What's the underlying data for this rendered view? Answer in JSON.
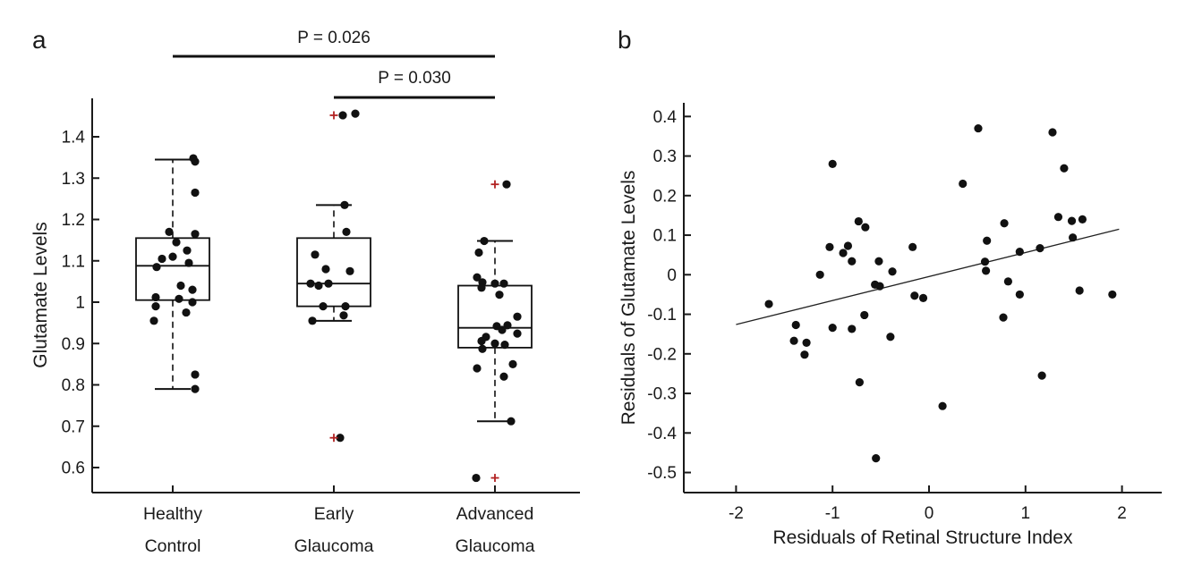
{
  "chart_data": [
    {
      "type": "box",
      "panel_label": "a",
      "ylabel": "Glutamate Levels",
      "ylim": [
        0.54,
        1.49
      ],
      "yticks": [
        1.4,
        1.3,
        1.2,
        1.1,
        1.0,
        0.9,
        0.8,
        0.7,
        0.6
      ],
      "ytick_labels": [
        "1.4",
        "1.3",
        "1.2",
        "1.1",
        "1",
        "0.9",
        "0.8",
        "0.7",
        "0.6"
      ],
      "marker_color": "#111111",
      "outlier_color": "#b22222",
      "groups": [
        {
          "label_lines": [
            "Healthy",
            "Control"
          ],
          "box": {
            "whisker_low": 0.79,
            "q1": 1.005,
            "median": 1.088,
            "q3": 1.155,
            "whisker_high": 1.345
          },
          "points": [
            [
              23,
              1.348
            ],
            [
              25,
              1.34
            ],
            [
              25,
              1.265
            ],
            [
              -4,
              1.17
            ],
            [
              25,
              1.165
            ],
            [
              4,
              1.145
            ],
            [
              16,
              1.125
            ],
            [
              0,
              1.11
            ],
            [
              -12,
              1.105
            ],
            [
              18,
              1.095
            ],
            [
              -18,
              1.085
            ],
            [
              9,
              1.04
            ],
            [
              22,
              1.03
            ],
            [
              -19,
              1.012
            ],
            [
              7,
              1.008
            ],
            [
              22,
              1.0
            ],
            [
              -19,
              0.99
            ],
            [
              15,
              0.975
            ],
            [
              -21,
              0.955
            ],
            [
              25,
              0.825
            ],
            [
              25,
              0.79
            ]
          ],
          "outliers": []
        },
        {
          "label_lines": [
            "Early",
            "Glaucoma"
          ],
          "box": {
            "whisker_low": 0.955,
            "q1": 0.99,
            "median": 1.045,
            "q3": 1.155,
            "whisker_high": 1.235
          },
          "points": [
            [
              10,
              1.452
            ],
            [
              24,
              1.456
            ],
            [
              12,
              1.235
            ],
            [
              14,
              1.17
            ],
            [
              -21,
              1.115
            ],
            [
              -9,
              1.08
            ],
            [
              18,
              1.075
            ],
            [
              -26,
              1.045
            ],
            [
              -17,
              1.04
            ],
            [
              -6,
              1.045
            ],
            [
              -12,
              0.99
            ],
            [
              13,
              0.99
            ],
            [
              11,
              0.968
            ],
            [
              -24,
              0.955
            ],
            [
              7,
              0.672
            ]
          ],
          "outliers": [
            [
              0,
              1.452
            ],
            [
              0,
              0.672
            ]
          ]
        },
        {
          "label_lines": [
            "Advanced",
            "Glaucoma"
          ],
          "box": {
            "whisker_low": 0.712,
            "q1": 0.89,
            "median": 0.938,
            "q3": 1.04,
            "whisker_high": 1.148
          },
          "points": [
            [
              13,
              1.285
            ],
            [
              -12,
              1.148
            ],
            [
              -18,
              1.12
            ],
            [
              -20,
              1.06
            ],
            [
              -14,
              1.048
            ],
            [
              -15,
              1.035
            ],
            [
              0,
              1.045
            ],
            [
              10,
              1.045
            ],
            [
              5,
              1.018
            ],
            [
              25,
              0.965
            ],
            [
              2,
              0.942
            ],
            [
              14,
              0.944
            ],
            [
              8,
              0.933
            ],
            [
              25,
              0.924
            ],
            [
              -10,
              0.916
            ],
            [
              -15,
              0.906
            ],
            [
              0,
              0.9
            ],
            [
              11,
              0.897
            ],
            [
              -14,
              0.887
            ],
            [
              20,
              0.85
            ],
            [
              -20,
              0.84
            ],
            [
              10,
              0.82
            ],
            [
              18,
              0.712
            ],
            [
              -21,
              0.575
            ]
          ],
          "outliers": [
            [
              0,
              1.285
            ],
            [
              0,
              0.575
            ]
          ]
        }
      ],
      "significance": [
        {
          "label": "P = 0.026",
          "from": 0,
          "to": 2
        },
        {
          "label": "P = 0.030",
          "from": 1,
          "to": 2
        }
      ]
    },
    {
      "type": "scatter",
      "panel_label": "b",
      "xlabel": "Residuals of Retinal Structure Index",
      "ylabel": "Residuals of Glutamate Levels",
      "xlim": [
        -2.54,
        2.41
      ],
      "ylim": [
        -0.55,
        0.435
      ],
      "xticks": [
        -2,
        -1,
        0,
        1,
        2
      ],
      "xtick_labels": [
        "-2",
        "-1",
        "0",
        "1",
        "2"
      ],
      "yticks": [
        0.4,
        0.3,
        0.2,
        0.1,
        0,
        -0.1,
        -0.2,
        -0.3,
        -0.4,
        -0.5
      ],
      "ytick_labels": [
        "0.4",
        "0.3",
        "0.2",
        "0.1",
        "0",
        "-0.1",
        "-0.2",
        "-0.3",
        "-0.4",
        "-0.5"
      ],
      "marker_color": "#111111",
      "points": [
        [
          -1.66,
          -0.074
        ],
        [
          -1.4,
          -0.167
        ],
        [
          -1.38,
          -0.127
        ],
        [
          -1.29,
          -0.202
        ],
        [
          -1.27,
          -0.172
        ],
        [
          -1.13,
          0.0
        ],
        [
          -1.03,
          0.07
        ],
        [
          -1.0,
          0.28
        ],
        [
          -1.0,
          -0.134
        ],
        [
          -0.89,
          0.055
        ],
        [
          -0.84,
          0.073
        ],
        [
          -0.8,
          0.034
        ],
        [
          -0.8,
          -0.137
        ],
        [
          -0.73,
          0.135
        ],
        [
          -0.72,
          -0.272
        ],
        [
          -0.67,
          -0.102
        ],
        [
          -0.66,
          0.12
        ],
        [
          -0.56,
          -0.025
        ],
        [
          -0.55,
          -0.464
        ],
        [
          -0.52,
          0.034
        ],
        [
          -0.51,
          -0.029
        ],
        [
          -0.4,
          -0.157
        ],
        [
          -0.38,
          0.008
        ],
        [
          -0.17,
          0.07
        ],
        [
          -0.15,
          -0.053
        ],
        [
          -0.06,
          -0.059
        ],
        [
          0.14,
          -0.332
        ],
        [
          0.35,
          0.23
        ],
        [
          0.51,
          0.37
        ],
        [
          0.58,
          0.033
        ],
        [
          0.59,
          0.01
        ],
        [
          0.6,
          0.086
        ],
        [
          0.77,
          -0.108
        ],
        [
          0.78,
          0.13
        ],
        [
          0.82,
          -0.017
        ],
        [
          0.94,
          0.058
        ],
        [
          0.94,
          -0.05
        ],
        [
          1.15,
          0.067
        ],
        [
          1.17,
          -0.255
        ],
        [
          1.28,
          0.36
        ],
        [
          1.34,
          0.146
        ],
        [
          1.4,
          0.269
        ],
        [
          1.48,
          0.136
        ],
        [
          1.49,
          0.094
        ],
        [
          1.56,
          -0.04
        ],
        [
          1.59,
          0.14
        ],
        [
          1.9,
          -0.05
        ]
      ],
      "fit_line": {
        "x1": -2.0,
        "y1": -0.126,
        "x2": 1.97,
        "y2": 0.115
      }
    }
  ]
}
